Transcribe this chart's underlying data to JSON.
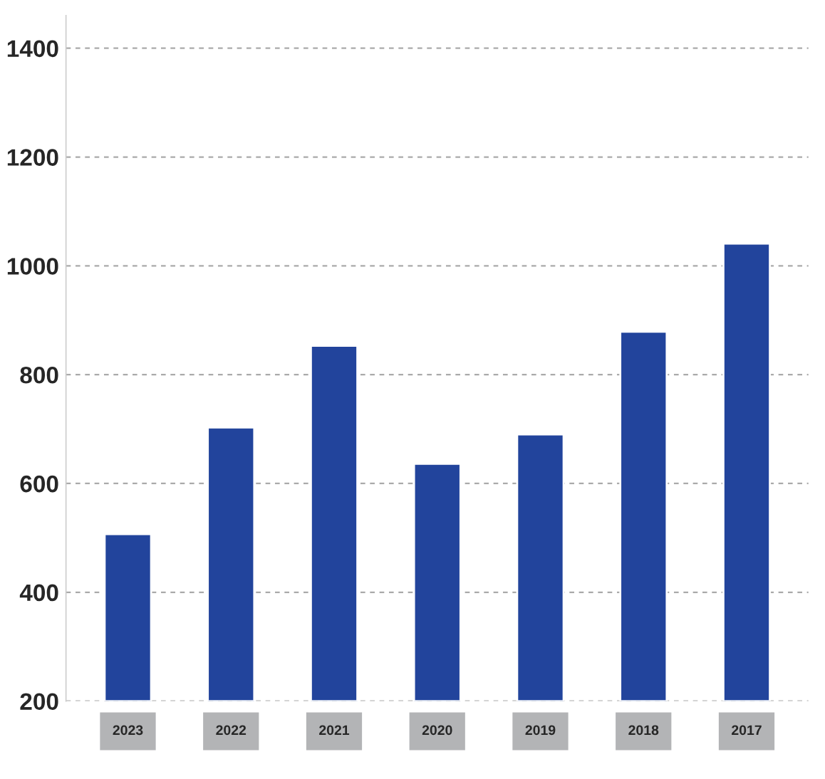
{
  "chart_data": {
    "type": "bar",
    "categories": [
      "2023",
      "2022",
      "2021",
      "2020",
      "2019",
      "2018",
      "2017"
    ],
    "values": [
      507,
      703,
      853,
      636,
      690,
      879,
      1041
    ],
    "color": "#22449c",
    "ylim": [
      200,
      1460
    ],
    "yticks": [
      200,
      400,
      600,
      800,
      1000,
      1200,
      1400
    ],
    "grid": "y"
  }
}
